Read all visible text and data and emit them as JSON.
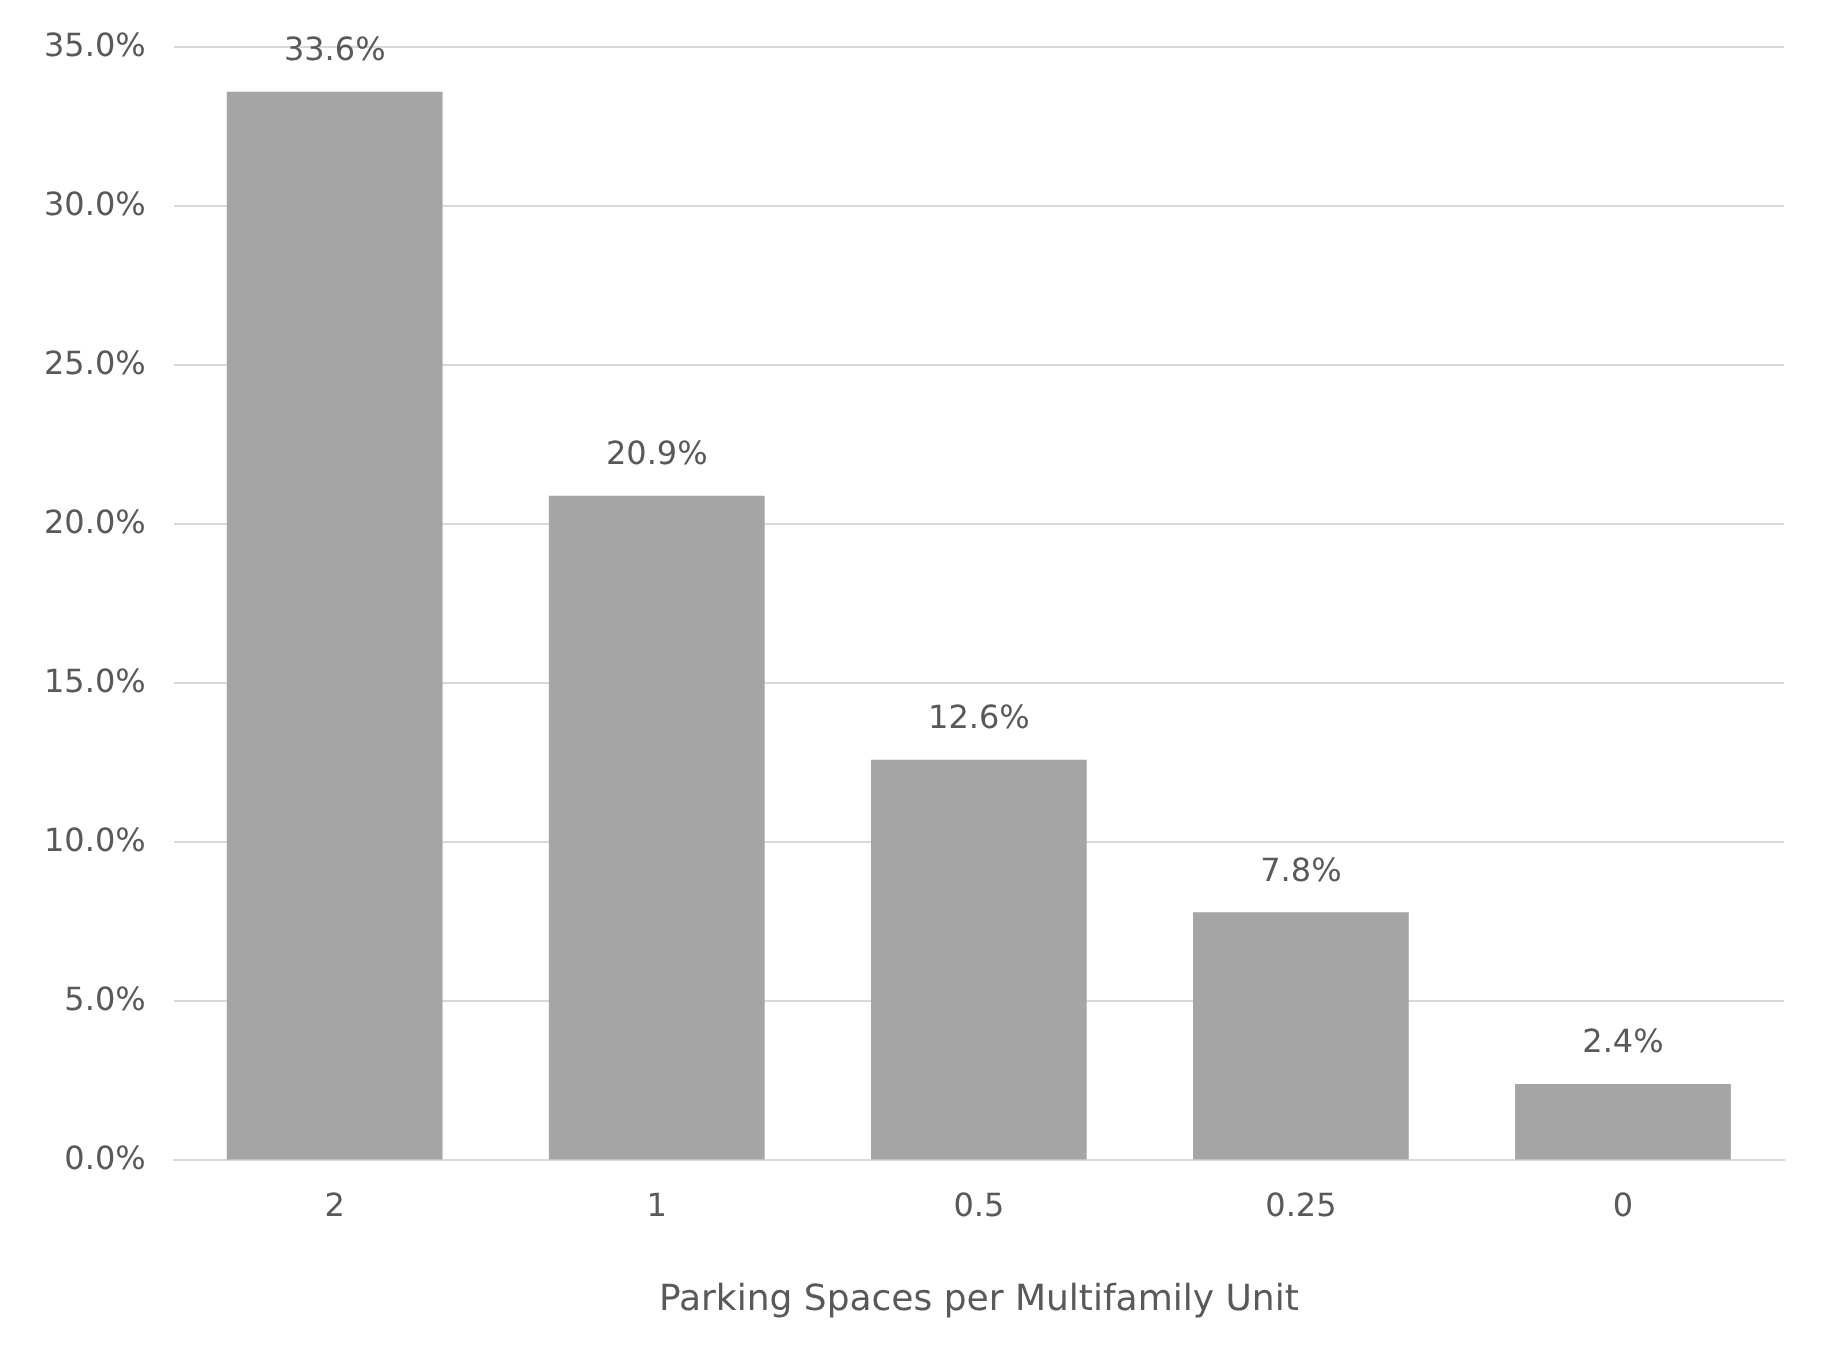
{
  "chart_data": {
    "type": "bar",
    "xlabel": "Parking Spaces per Multifamily Unit",
    "categories": [
      "2",
      "1",
      "0.5",
      "0.25",
      "0"
    ],
    "values": [
      33.6,
      20.9,
      12.6,
      7.8,
      2.4
    ],
    "color": "#a5a5a5",
    "value_labels": [
      "33.6%",
      "20.9%",
      "12.6%",
      "7.8%",
      "2.4%"
    ],
    "ylim": [
      0,
      35
    ],
    "yticks": [
      {
        "value": 0,
        "label": "0.0%"
      },
      {
        "value": 5,
        "label": "5.0%"
      },
      {
        "value": 10,
        "label": "10.0%"
      },
      {
        "value": 15,
        "label": "15.0%"
      },
      {
        "value": 20,
        "label": "20.0%"
      },
      {
        "value": 25,
        "label": "25.0%"
      },
      {
        "value": 30,
        "label": "30.0%"
      },
      {
        "value": 35,
        "label": "35.0%"
      }
    ],
    "grid": "y",
    "legend": false
  }
}
